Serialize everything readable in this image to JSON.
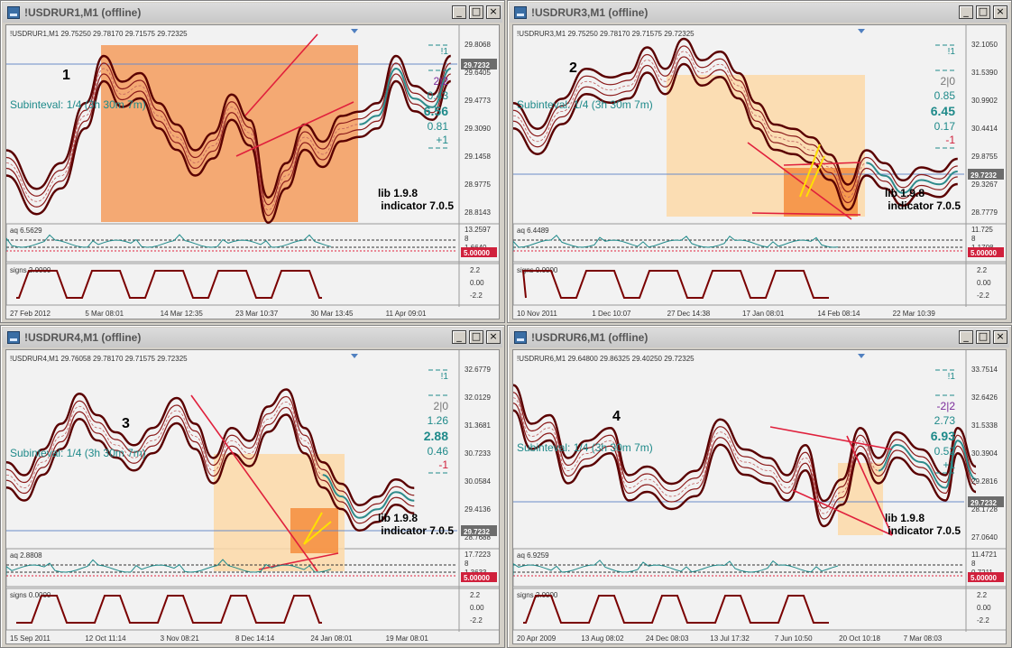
{
  "windows": [
    {
      "title": "!USDRUR1,M1 (offline)",
      "header": "!USDRUR1,M1  29.75250 29.78170 29.71575 29.72325",
      "number": "1",
      "subinterval": "Subinteval: 1/4 (3h 30m 7m)",
      "prices": [
        "29.8068",
        "29.6405",
        "29.4773",
        "29.3090",
        "29.1458",
        "28.9775",
        "28.8143"
      ],
      "current": "29.7232",
      "stats": {
        "top": "!1",
        "ratio": "2|2",
        "v1": "0.43",
        "big": "6.56",
        "v2": "0.81",
        "v3": "+1"
      },
      "lib": "lib 1.9.8",
      "indicator": "indicator 7.0.5",
      "aq_label": "aq 6.5629",
      "aq_scale": [
        "13.2597",
        "8",
        "1.6640"
      ],
      "aq_level": "5.00000",
      "signs_label": "signs 2.0000",
      "signs_scale": [
        "2.2",
        "0.00",
        "-2.2"
      ],
      "dates": [
        "27 Feb 2012",
        "5 Mar 08:01",
        "14 Mar 12:35",
        "23 Mar 10:37",
        "30 Mar 13:45",
        "11 Apr 09:01"
      ]
    },
    {
      "title": "!USDRUR3,M1 (offline)",
      "header": "!USDRUR3,M1  29.75250 29.78170 29.71575 29.72325",
      "number": "2",
      "subinterval": "Subinteval: 1/4 (3h 30m 7m)",
      "prices": [
        "32.1050",
        "31.5390",
        "30.9902",
        "30.4414",
        "29.8755",
        "29.3267",
        "28.7779"
      ],
      "current": "29.7232",
      "stats": {
        "top": "!1",
        "ratio": "2|0",
        "v1": "0.85",
        "big": "6.45",
        "v2": "0.17",
        "v3": "-1"
      },
      "lib": "lib 1.9.8",
      "indicator": "indicator 7.0.5",
      "aq_label": "aq 6.4489",
      "aq_scale": [
        "11.725",
        "8",
        "1.1708"
      ],
      "aq_level": "5.00000",
      "signs_label": "signs 0.0000",
      "signs_scale": [
        "2.2",
        "0.00",
        "-2.2"
      ],
      "dates": [
        "10 Nov 2011",
        "1 Dec 10:07",
        "27 Dec 14:38",
        "17 Jan 08:01",
        "14 Feb 08:14",
        "22 Mar 10:39"
      ]
    },
    {
      "title": "!USDRUR4,M1 (offline)",
      "header": "!USDRUR4,M1  29.76058 29.78170 29.71575 29.72325",
      "number": "3",
      "subinterval": "Subinteval: 1/4 (3h 30m 7m)",
      "prices": [
        "32.6779",
        "32.0129",
        "31.3681",
        "30.7233",
        "30.0584",
        "29.4136",
        "28.7688"
      ],
      "current": "29.7232",
      "stats": {
        "top": "!1",
        "ratio": "2|0",
        "v1": "1.26",
        "big": "2.88",
        "v2": "0.46",
        "v3": "-1"
      },
      "lib": "lib 1.9.8",
      "indicator": "indicator 7.0.5",
      "aq_label": "aq 2.8808",
      "aq_scale": [
        "17.7223",
        "8",
        "1.3633"
      ],
      "aq_level": "5.00000",
      "signs_label": "signs 0.0000",
      "signs_scale": [
        "2.2",
        "0.00",
        "-2.2"
      ],
      "dates": [
        "15 Sep 2011",
        "12 Oct 11:14",
        "3 Nov 08:21",
        "8 Dec 14:14",
        "24 Jan 08:01",
        "19 Mar 08:01"
      ]
    },
    {
      "title": "!USDRUR6,M1 (offline)",
      "header": "!USDRUR6,M1  29.64800 29.86325 29.40250 29.72325",
      "number": "4",
      "subinterval": "Subinteval: 1/4 (3h 30m 7m)",
      "prices": [
        "33.7514",
        "32.6426",
        "31.5338",
        "30.3904",
        "29.2816",
        "28.1728",
        "27.0640"
      ],
      "current": "29.7232",
      "stats": {
        "top": "!1",
        "ratio": "-2|2",
        "v1": "2.73",
        "big": "6.93",
        "v2": "0.52",
        "v3": "+1"
      },
      "lib": "lib 1.9.8",
      "indicator": "indicator 7.0.5",
      "aq_label": "aq 6.9259",
      "aq_scale": [
        "11.4721",
        "8",
        "0.7211"
      ],
      "aq_level": "5.00000",
      "signs_label": "signs 2.0000",
      "signs_scale": [
        "2.2",
        "0.00",
        "-2.2"
      ],
      "dates": [
        "20 Apr 2009",
        "13 Aug 08:02",
        "24 Dec 08:03",
        "13 Jul 17:32",
        "7 Jun 10:50",
        "20 Oct 10:18",
        "7 Mar 08:03"
      ]
    }
  ],
  "buttons": {
    "minimize": "_",
    "maximize": "□",
    "close": "×"
  },
  "colors": {
    "candles": "#7a0000",
    "band": "#5a0000",
    "signal": "#2e8b8b",
    "orange_box": "#f4a460",
    "light_box": "#fddcaa",
    "trend": "#e0203c",
    "level": "#e0203c"
  }
}
